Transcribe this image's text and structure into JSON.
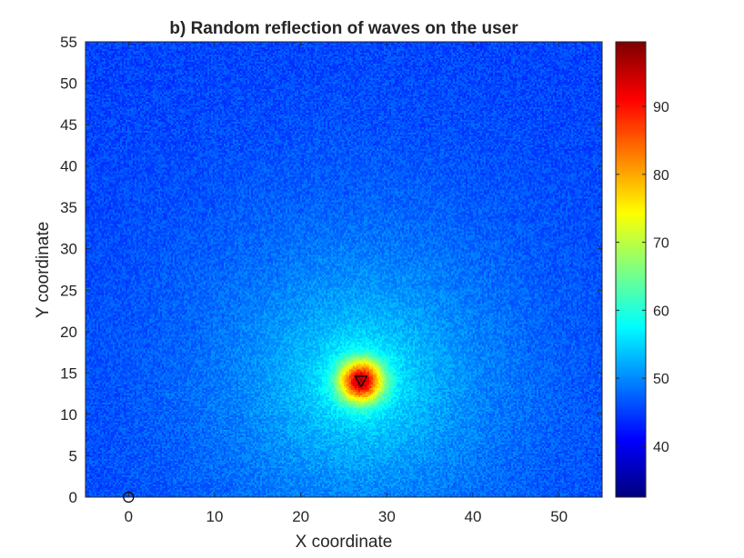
{
  "chart_data": {
    "type": "heatmap",
    "title": "b) Random reflection of waves on the user",
    "xlabel": "X coordinate",
    "ylabel": "Y coordinate",
    "xlim": [
      -5,
      55
    ],
    "ylim": [
      0,
      55
    ],
    "xticks": [
      0,
      10,
      20,
      30,
      40,
      50
    ],
    "yticks": [
      0,
      5,
      10,
      15,
      20,
      25,
      30,
      35,
      40,
      45,
      50,
      55
    ],
    "colormap": "jet",
    "colorbar": {
      "range": [
        32.5,
        99.5
      ],
      "ticks": [
        40,
        50,
        60,
        70,
        80,
        90
      ]
    },
    "field": {
      "background_level": 45,
      "peak_center": [
        27,
        14
      ],
      "peak_value": 97,
      "noise": "random speckle"
    },
    "markers": [
      {
        "shape": "circle",
        "x": 0,
        "y": 0,
        "color": "#000000"
      },
      {
        "shape": "triangle-down",
        "x": 27,
        "y": 14,
        "color": "#000000"
      }
    ],
    "grid": false
  }
}
